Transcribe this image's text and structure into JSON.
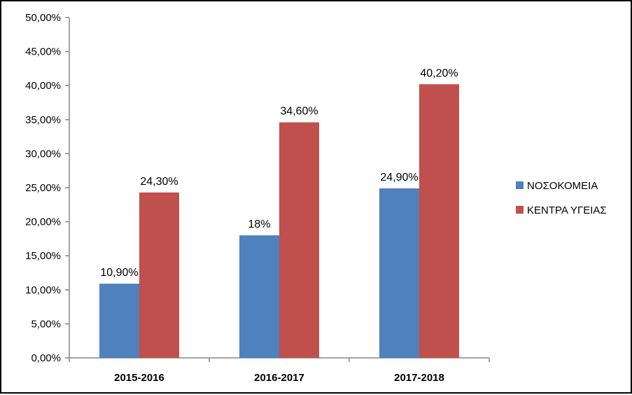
{
  "chart_data": {
    "type": "bar",
    "categories": [
      "2015-2016",
      "2016-2017",
      "2017-2018"
    ],
    "series": [
      {
        "name": "ΝΟΣΟΚΟΜΕΙΑ",
        "color": "#4F81BD",
        "values": [
          10.9,
          18.0,
          24.9
        ],
        "labels": [
          "10,90%",
          "18%",
          "24,90%"
        ]
      },
      {
        "name": "ΚΕΝΤΡΑ ΥΓΕΙΑΣ",
        "color": "#C0504D",
        "values": [
          24.3,
          34.6,
          40.2
        ],
        "labels": [
          "24,30%",
          "34,60%",
          "40,20%"
        ]
      }
    ],
    "ylim": [
      0,
      50
    ],
    "yticks": [
      0,
      5,
      10,
      15,
      20,
      25,
      30,
      35,
      40,
      45,
      50
    ],
    "ytick_labels": [
      "0,00%",
      "5,00%",
      "10,00%",
      "15,00%",
      "20,00%",
      "25,00%",
      "30,00%",
      "35,00%",
      "40,00%",
      "45,00%",
      "50,00%"
    ],
    "grid": false,
    "legend_position": "right"
  }
}
